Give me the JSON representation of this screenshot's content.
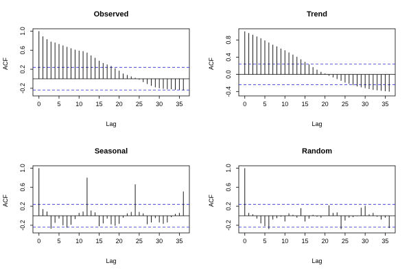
{
  "chart_data": [
    {
      "type": "bar",
      "title": "Observed",
      "xlabel": "Lag",
      "ylabel": "ACF",
      "xlim": [
        -1.5,
        37.5
      ],
      "ylim": [
        -0.36,
        1.05
      ],
      "x_ticks": [
        0,
        5,
        10,
        15,
        20,
        25,
        30,
        35
      ],
      "y_ticks": [
        -0.2,
        0.2,
        0.6,
        1.0
      ],
      "y_tick_labels": [
        "-0.2",
        "0.2",
        "0.6",
        "1.0"
      ],
      "confidence_bounds": [
        0.24,
        -0.24
      ],
      "lags": [
        0,
        1,
        2,
        3,
        4,
        5,
        6,
        7,
        8,
        9,
        10,
        11,
        12,
        13,
        14,
        15,
        16,
        17,
        18,
        19,
        20,
        21,
        22,
        23,
        24,
        25,
        26,
        27,
        28,
        29,
        30,
        31,
        32,
        33,
        34,
        35,
        36
      ],
      "values": [
        1.0,
        0.89,
        0.83,
        0.78,
        0.76,
        0.73,
        0.7,
        0.67,
        0.64,
        0.61,
        0.59,
        0.58,
        0.55,
        0.49,
        0.44,
        0.38,
        0.33,
        0.3,
        0.27,
        0.22,
        0.17,
        0.11,
        0.08,
        0.05,
        0.02,
        -0.02,
        -0.07,
        -0.11,
        -0.15,
        -0.18,
        -0.2,
        -0.21,
        -0.22,
        -0.22,
        -0.23,
        -0.23,
        -0.24
      ]
    },
    {
      "type": "bar",
      "title": "Trend",
      "xlabel": "Lag",
      "ylabel": "ACF",
      "xlim": [
        -1.5,
        37.5
      ],
      "ylim": [
        -0.5,
        1.06
      ],
      "x_ticks": [
        0,
        5,
        10,
        15,
        20,
        25,
        30,
        35
      ],
      "y_ticks": [
        -0.4,
        0.0,
        0.4,
        0.8
      ],
      "y_tick_labels": [
        "-0.4",
        "0.0",
        "0.4",
        "0.8"
      ],
      "confidence_bounds": [
        0.24,
        -0.24
      ],
      "lags": [
        0,
        1,
        2,
        3,
        4,
        5,
        6,
        7,
        8,
        9,
        10,
        11,
        12,
        13,
        14,
        15,
        16,
        17,
        18,
        19,
        20,
        21,
        22,
        23,
        24,
        25,
        26,
        27,
        28,
        29,
        30,
        31,
        32,
        33,
        34,
        35,
        36
      ],
      "values": [
        1.0,
        0.96,
        0.92,
        0.88,
        0.84,
        0.79,
        0.74,
        0.69,
        0.65,
        0.6,
        0.56,
        0.51,
        0.46,
        0.41,
        0.35,
        0.29,
        0.23,
        0.17,
        0.11,
        0.06,
        0.02,
        -0.03,
        -0.07,
        -0.11,
        -0.15,
        -0.19,
        -0.22,
        -0.25,
        -0.28,
        -0.3,
        -0.32,
        -0.34,
        -0.36,
        -0.37,
        -0.38,
        -0.39,
        -0.4
      ]
    },
    {
      "type": "bar",
      "title": "Seasonal",
      "xlabel": "Lag",
      "ylabel": "ACF",
      "xlim": [
        -1.5,
        37.5
      ],
      "ylim": [
        -0.36,
        1.05
      ],
      "x_ticks": [
        0,
        5,
        10,
        15,
        20,
        25,
        30,
        35
      ],
      "y_ticks": [
        -0.2,
        0.2,
        0.6,
        1.0
      ],
      "y_tick_labels": [
        "-0.2",
        "0.2",
        "0.6",
        "1.0"
      ],
      "confidence_bounds": [
        0.24,
        -0.24
      ],
      "lags": [
        0,
        1,
        2,
        3,
        4,
        5,
        6,
        7,
        8,
        9,
        10,
        11,
        12,
        13,
        14,
        15,
        16,
        17,
        18,
        19,
        20,
        21,
        22,
        23,
        24,
        25,
        26,
        27,
        28,
        29,
        30,
        31,
        32,
        33,
        34,
        35,
        36
      ],
      "values": [
        1.0,
        0.14,
        0.09,
        -0.27,
        -0.15,
        -0.06,
        -0.2,
        -0.25,
        -0.19,
        -0.07,
        0.06,
        0.09,
        0.8,
        0.11,
        0.07,
        -0.22,
        -0.16,
        -0.06,
        -0.18,
        -0.21,
        -0.17,
        -0.04,
        0.05,
        0.08,
        0.66,
        0.08,
        0.05,
        -0.18,
        -0.14,
        -0.05,
        -0.14,
        -0.17,
        -0.14,
        -0.03,
        0.04,
        0.06,
        0.51
      ]
    },
    {
      "type": "bar",
      "title": "Random",
      "xlabel": "Lag",
      "ylabel": "ACF",
      "xlim": [
        -1.5,
        37.5
      ],
      "ylim": [
        -0.36,
        1.05
      ],
      "x_ticks": [
        0,
        5,
        10,
        15,
        20,
        25,
        30,
        35
      ],
      "y_ticks": [
        -0.2,
        0.2,
        0.6,
        1.0
      ],
      "y_tick_labels": [
        "-0.2",
        "0.2",
        "0.6",
        "1.0"
      ],
      "confidence_bounds": [
        0.24,
        -0.24
      ],
      "lags": [
        0,
        1,
        2,
        3,
        4,
        5,
        6,
        7,
        8,
        9,
        10,
        11,
        12,
        13,
        14,
        15,
        16,
        17,
        18,
        19,
        20,
        21,
        22,
        23,
        24,
        25,
        26,
        27,
        28,
        29,
        30,
        31,
        32,
        33,
        34,
        35,
        36
      ],
      "values": [
        1.0,
        0.06,
        0.03,
        -0.06,
        -0.16,
        -0.22,
        -0.28,
        -0.08,
        -0.05,
        -0.02,
        -0.12,
        0.05,
        0.02,
        -0.04,
        0.16,
        -0.12,
        -0.06,
        0.02,
        -0.02,
        -0.04,
        0.0,
        0.22,
        0.06,
        0.07,
        -0.28,
        -0.1,
        -0.04,
        -0.03,
        -0.01,
        0.17,
        0.21,
        0.03,
        0.06,
        -0.02,
        -0.08,
        -0.04,
        -0.26
      ]
    }
  ],
  "colors": {
    "bars": "#000000",
    "confidence_lines": "#2b2bd6",
    "axes": "#000000",
    "background": "#ffffff"
  }
}
